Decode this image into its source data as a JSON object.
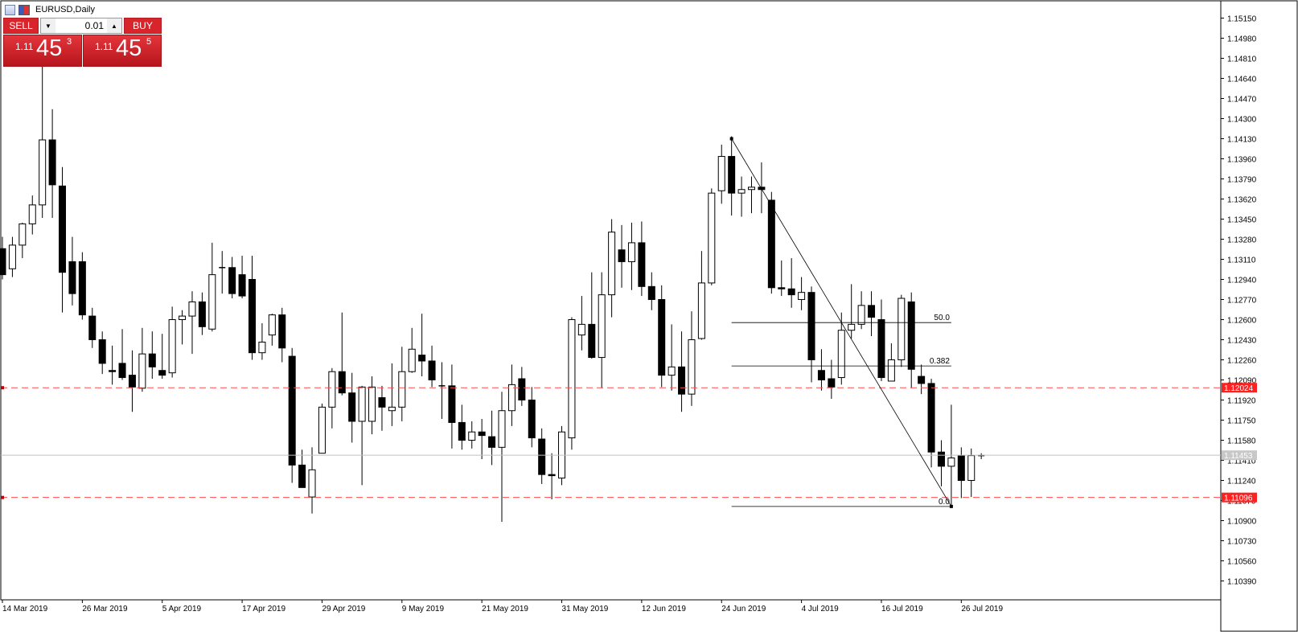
{
  "window": {
    "title": "EURUSD,Daily"
  },
  "trade_panel": {
    "sell_label": "SELL",
    "buy_label": "BUY",
    "lot_value": "0.01",
    "sell_price": {
      "big": "1.11",
      "pips": "45",
      "point": "3"
    },
    "buy_price": {
      "big": "1.11",
      "pips": "45",
      "point": "5"
    }
  },
  "colors": {
    "sell_bg": "#d8242b",
    "level_line": "#ff4d4d",
    "bull": "#ffffff",
    "bear": "#000000"
  },
  "chart_data": {
    "type": "candlestick",
    "symbol": "EURUSD",
    "timeframe": "Daily",
    "ylim": [
      1.1029,
      1.1525
    ],
    "y_ticks": [
      1.1515,
      1.1498,
      1.1481,
      1.1464,
      1.1447,
      1.143,
      1.1413,
      1.1396,
      1.1379,
      1.1362,
      1.1345,
      1.1328,
      1.1311,
      1.1294,
      1.1277,
      1.126,
      1.1243,
      1.1226,
      1.1209,
      1.1192,
      1.1175,
      1.1158,
      1.1141,
      1.1124,
      1.1107,
      1.109,
      1.1073,
      1.1056,
      1.1039
    ],
    "y_tick_labels": [
      "1.15150",
      "1.14980",
      "1.14810",
      "1.14640",
      "1.14470",
      "1.14300",
      "1.14130",
      "1.13960",
      "1.13790",
      "1.13620",
      "1.13450",
      "1.13280",
      "1.13110",
      "1.12940",
      "1.12770",
      "1.12600",
      "1.12430",
      "1.12260",
      "1.12090",
      "1.11920",
      "1.11750",
      "1.11580",
      "1.11410",
      "1.11240",
      "1.11070",
      "1.10900",
      "1.10730",
      "1.10560",
      "1.10390"
    ],
    "x_labels": [
      {
        "index": 0,
        "label": "14 Mar 2019"
      },
      {
        "index": 8,
        "label": "26 Mar 2019"
      },
      {
        "index": 16,
        "label": "5 Apr 2019"
      },
      {
        "index": 24,
        "label": "17 Apr 2019"
      },
      {
        "index": 32,
        "label": "29 Apr 2019"
      },
      {
        "index": 40,
        "label": "9 May 2019"
      },
      {
        "index": 48,
        "label": "21 May 2019"
      },
      {
        "index": 56,
        "label": "31 May 2019"
      },
      {
        "index": 64,
        "label": "12 Jun 2019"
      },
      {
        "index": 72,
        "label": "24 Jun 2019"
      },
      {
        "index": 80,
        "label": "4 Jul 2019"
      },
      {
        "index": 88,
        "label": "16 Jul 2019"
      },
      {
        "index": 96,
        "label": "26 Jul 2019"
      }
    ],
    "candles": [
      [
        1.132,
        1.133,
        1.1294,
        1.1298
      ],
      [
        1.1303,
        1.133,
        1.1296,
        1.1323
      ],
      [
        1.1323,
        1.1342,
        1.1312,
        1.1341
      ],
      [
        1.1341,
        1.1365,
        1.1332,
        1.1357
      ],
      [
        1.1357,
        1.1478,
        1.1346,
        1.1412
      ],
      [
        1.1412,
        1.1438,
        1.1346,
        1.1374
      ],
      [
        1.1373,
        1.1389,
        1.1266,
        1.13
      ],
      [
        1.1309,
        1.133,
        1.1272,
        1.1282
      ],
      [
        1.1309,
        1.1317,
        1.126,
        1.1264
      ],
      [
        1.1263,
        1.127,
        1.1236,
        1.1243
      ],
      [
        1.1243,
        1.125,
        1.1214,
        1.1223
      ],
      [
        1.1217,
        1.1238,
        1.1205,
        1.1216
      ],
      [
        1.1223,
        1.1252,
        1.1209,
        1.1211
      ],
      [
        1.1213,
        1.1234,
        1.1182,
        1.1203
      ],
      [
        1.1202,
        1.1253,
        1.1199,
        1.1231
      ],
      [
        1.1231,
        1.125,
        1.121,
        1.122
      ],
      [
        1.1217,
        1.1248,
        1.121,
        1.1213
      ],
      [
        1.1215,
        1.1271,
        1.1211,
        1.126
      ],
      [
        1.126,
        1.1268,
        1.1239,
        1.1263
      ],
      [
        1.1263,
        1.1284,
        1.1231,
        1.1275
      ],
      [
        1.1275,
        1.1283,
        1.1247,
        1.1254
      ],
      [
        1.1252,
        1.1325,
        1.125,
        1.1298
      ],
      [
        1.1304,
        1.1318,
        1.1282,
        1.1304
      ],
      [
        1.1304,
        1.1313,
        1.1278,
        1.1282
      ],
      [
        1.1298,
        1.1314,
        1.1278,
        1.128
      ],
      [
        1.1294,
        1.1314,
        1.1226,
        1.1232
      ],
      [
        1.1232,
        1.1257,
        1.1226,
        1.1241
      ],
      [
        1.1247,
        1.1265,
        1.1238,
        1.1264
      ],
      [
        1.1264,
        1.127,
        1.1224,
        1.1236
      ],
      [
        1.1229,
        1.1236,
        1.1122,
        1.1137
      ],
      [
        1.1137,
        1.115,
        1.1118,
        1.1118
      ],
      [
        1.111,
        1.1152,
        1.1096,
        1.1133
      ],
      [
        1.1147,
        1.1189,
        1.1147,
        1.1186
      ],
      [
        1.1186,
        1.1219,
        1.1168,
        1.1216
      ],
      [
        1.1216,
        1.1266,
        1.1196,
        1.1198
      ],
      [
        1.1198,
        1.1215,
        1.1156,
        1.1174
      ],
      [
        1.1174,
        1.1204,
        1.112,
        1.1203
      ],
      [
        1.1174,
        1.1212,
        1.1163,
        1.1203
      ],
      [
        1.1194,
        1.1204,
        1.1166,
        1.1186
      ],
      [
        1.1183,
        1.1223,
        1.117,
        1.1186
      ],
      [
        1.1186,
        1.1237,
        1.1174,
        1.1216
      ],
      [
        1.1216,
        1.1253,
        1.1215,
        1.1235
      ],
      [
        1.123,
        1.1265,
        1.1212,
        1.1225
      ],
      [
        1.1225,
        1.1238,
        1.1203,
        1.1209
      ],
      [
        1.1204,
        1.1224,
        1.1176,
        1.1204
      ],
      [
        1.1204,
        1.1222,
        1.1151,
        1.1173
      ],
      [
        1.1173,
        1.1188,
        1.115,
        1.1158
      ],
      [
        1.1158,
        1.1174,
        1.1151,
        1.1165
      ],
      [
        1.1165,
        1.1176,
        1.1142,
        1.1162
      ],
      [
        1.1161,
        1.1183,
        1.1137,
        1.1152
      ],
      [
        1.1152,
        1.1199,
        1.1089,
        1.1183
      ],
      [
        1.1183,
        1.1222,
        1.117,
        1.1205
      ],
      [
        1.121,
        1.122,
        1.1187,
        1.1192
      ],
      [
        1.1192,
        1.1203,
        1.1152,
        1.116
      ],
      [
        1.1159,
        1.1168,
        1.1121,
        1.1129
      ],
      [
        1.1129,
        1.1147,
        1.1108,
        1.1128
      ],
      [
        1.1126,
        1.117,
        1.112,
        1.1165
      ],
      [
        1.116,
        1.1262,
        1.115,
        1.126
      ],
      [
        1.1247,
        1.128,
        1.1234,
        1.1256
      ],
      [
        1.1256,
        1.13,
        1.1227,
        1.1228
      ],
      [
        1.1228,
        1.13,
        1.1202,
        1.1281
      ],
      [
        1.1281,
        1.1345,
        1.1262,
        1.1334
      ],
      [
        1.1319,
        1.134,
        1.1287,
        1.1309
      ],
      [
        1.1309,
        1.1342,
        1.1285,
        1.1325
      ],
      [
        1.1325,
        1.1343,
        1.128,
        1.1288
      ],
      [
        1.1288,
        1.13,
        1.1268,
        1.1277
      ],
      [
        1.1277,
        1.1289,
        1.1203,
        1.1213
      ],
      [
        1.1213,
        1.1256,
        1.12,
        1.122
      ],
      [
        1.122,
        1.125,
        1.1182,
        1.1197
      ],
      [
        1.1197,
        1.1267,
        1.1187,
        1.1243
      ],
      [
        1.1244,
        1.1318,
        1.1243,
        1.1291
      ],
      [
        1.1291,
        1.1371,
        1.1289,
        1.1367
      ],
      [
        1.1369,
        1.1408,
        1.1358,
        1.1398
      ],
      [
        1.1398,
        1.1415,
        1.1348,
        1.1367
      ],
      [
        1.1367,
        1.1381,
        1.1347,
        1.137
      ],
      [
        1.137,
        1.1381,
        1.135,
        1.1372
      ],
      [
        1.1372,
        1.1393,
        1.135,
        1.137
      ],
      [
        1.1361,
        1.1368,
        1.1282,
        1.1287
      ],
      [
        1.1287,
        1.131,
        1.128,
        1.1286
      ],
      [
        1.1286,
        1.1312,
        1.127,
        1.1281
      ],
      [
        1.1277,
        1.1296,
        1.1268,
        1.1283
      ],
      [
        1.1283,
        1.1288,
        1.1207,
        1.1226
      ],
      [
        1.1217,
        1.1235,
        1.12,
        1.1209
      ],
      [
        1.121,
        1.1226,
        1.1193,
        1.1203
      ],
      [
        1.1211,
        1.1266,
        1.1205,
        1.1251
      ],
      [
        1.1251,
        1.129,
        1.1244,
        1.1256
      ],
      [
        1.1256,
        1.1284,
        1.1252,
        1.1272
      ],
      [
        1.1272,
        1.1284,
        1.1246,
        1.1262
      ],
      [
        1.126,
        1.1277,
        1.1208,
        1.1211
      ],
      [
        1.1208,
        1.124,
        1.1208,
        1.1226
      ],
      [
        1.1226,
        1.1281,
        1.122,
        1.1278
      ],
      [
        1.1275,
        1.1283,
        1.1202,
        1.1218
      ],
      [
        1.1212,
        1.1222,
        1.1197,
        1.1206
      ],
      [
        1.1206,
        1.121,
        1.1135,
        1.1148
      ],
      [
        1.1148,
        1.1158,
        1.1119,
        1.1136
      ],
      [
        1.1136,
        1.1188,
        1.1101,
        1.1143
      ],
      [
        1.1145,
        1.1152,
        1.1109,
        1.1124
      ],
      [
        1.1124,
        1.1151,
        1.111,
        1.1145
      ],
      [
        1.1145,
        1.1147,
        1.1142,
        1.1145
      ]
    ],
    "levels": [
      {
        "price": 1.12024,
        "label": "1.12024"
      },
      {
        "price": 1.11096,
        "label": "1.11096"
      }
    ],
    "current_price": {
      "price": 1.11453,
      "label": "1.11453"
    },
    "fibonacci": {
      "from": {
        "index": 73,
        "price": 1.1413
      },
      "to": {
        "index": 95,
        "price": 1.1102
      },
      "levels": [
        {
          "ratio": 0.5,
          "label": "50.0"
        },
        {
          "ratio": 0.382,
          "label": "0.382"
        },
        {
          "ratio": 0.0,
          "label": "0.0"
        }
      ]
    }
  }
}
